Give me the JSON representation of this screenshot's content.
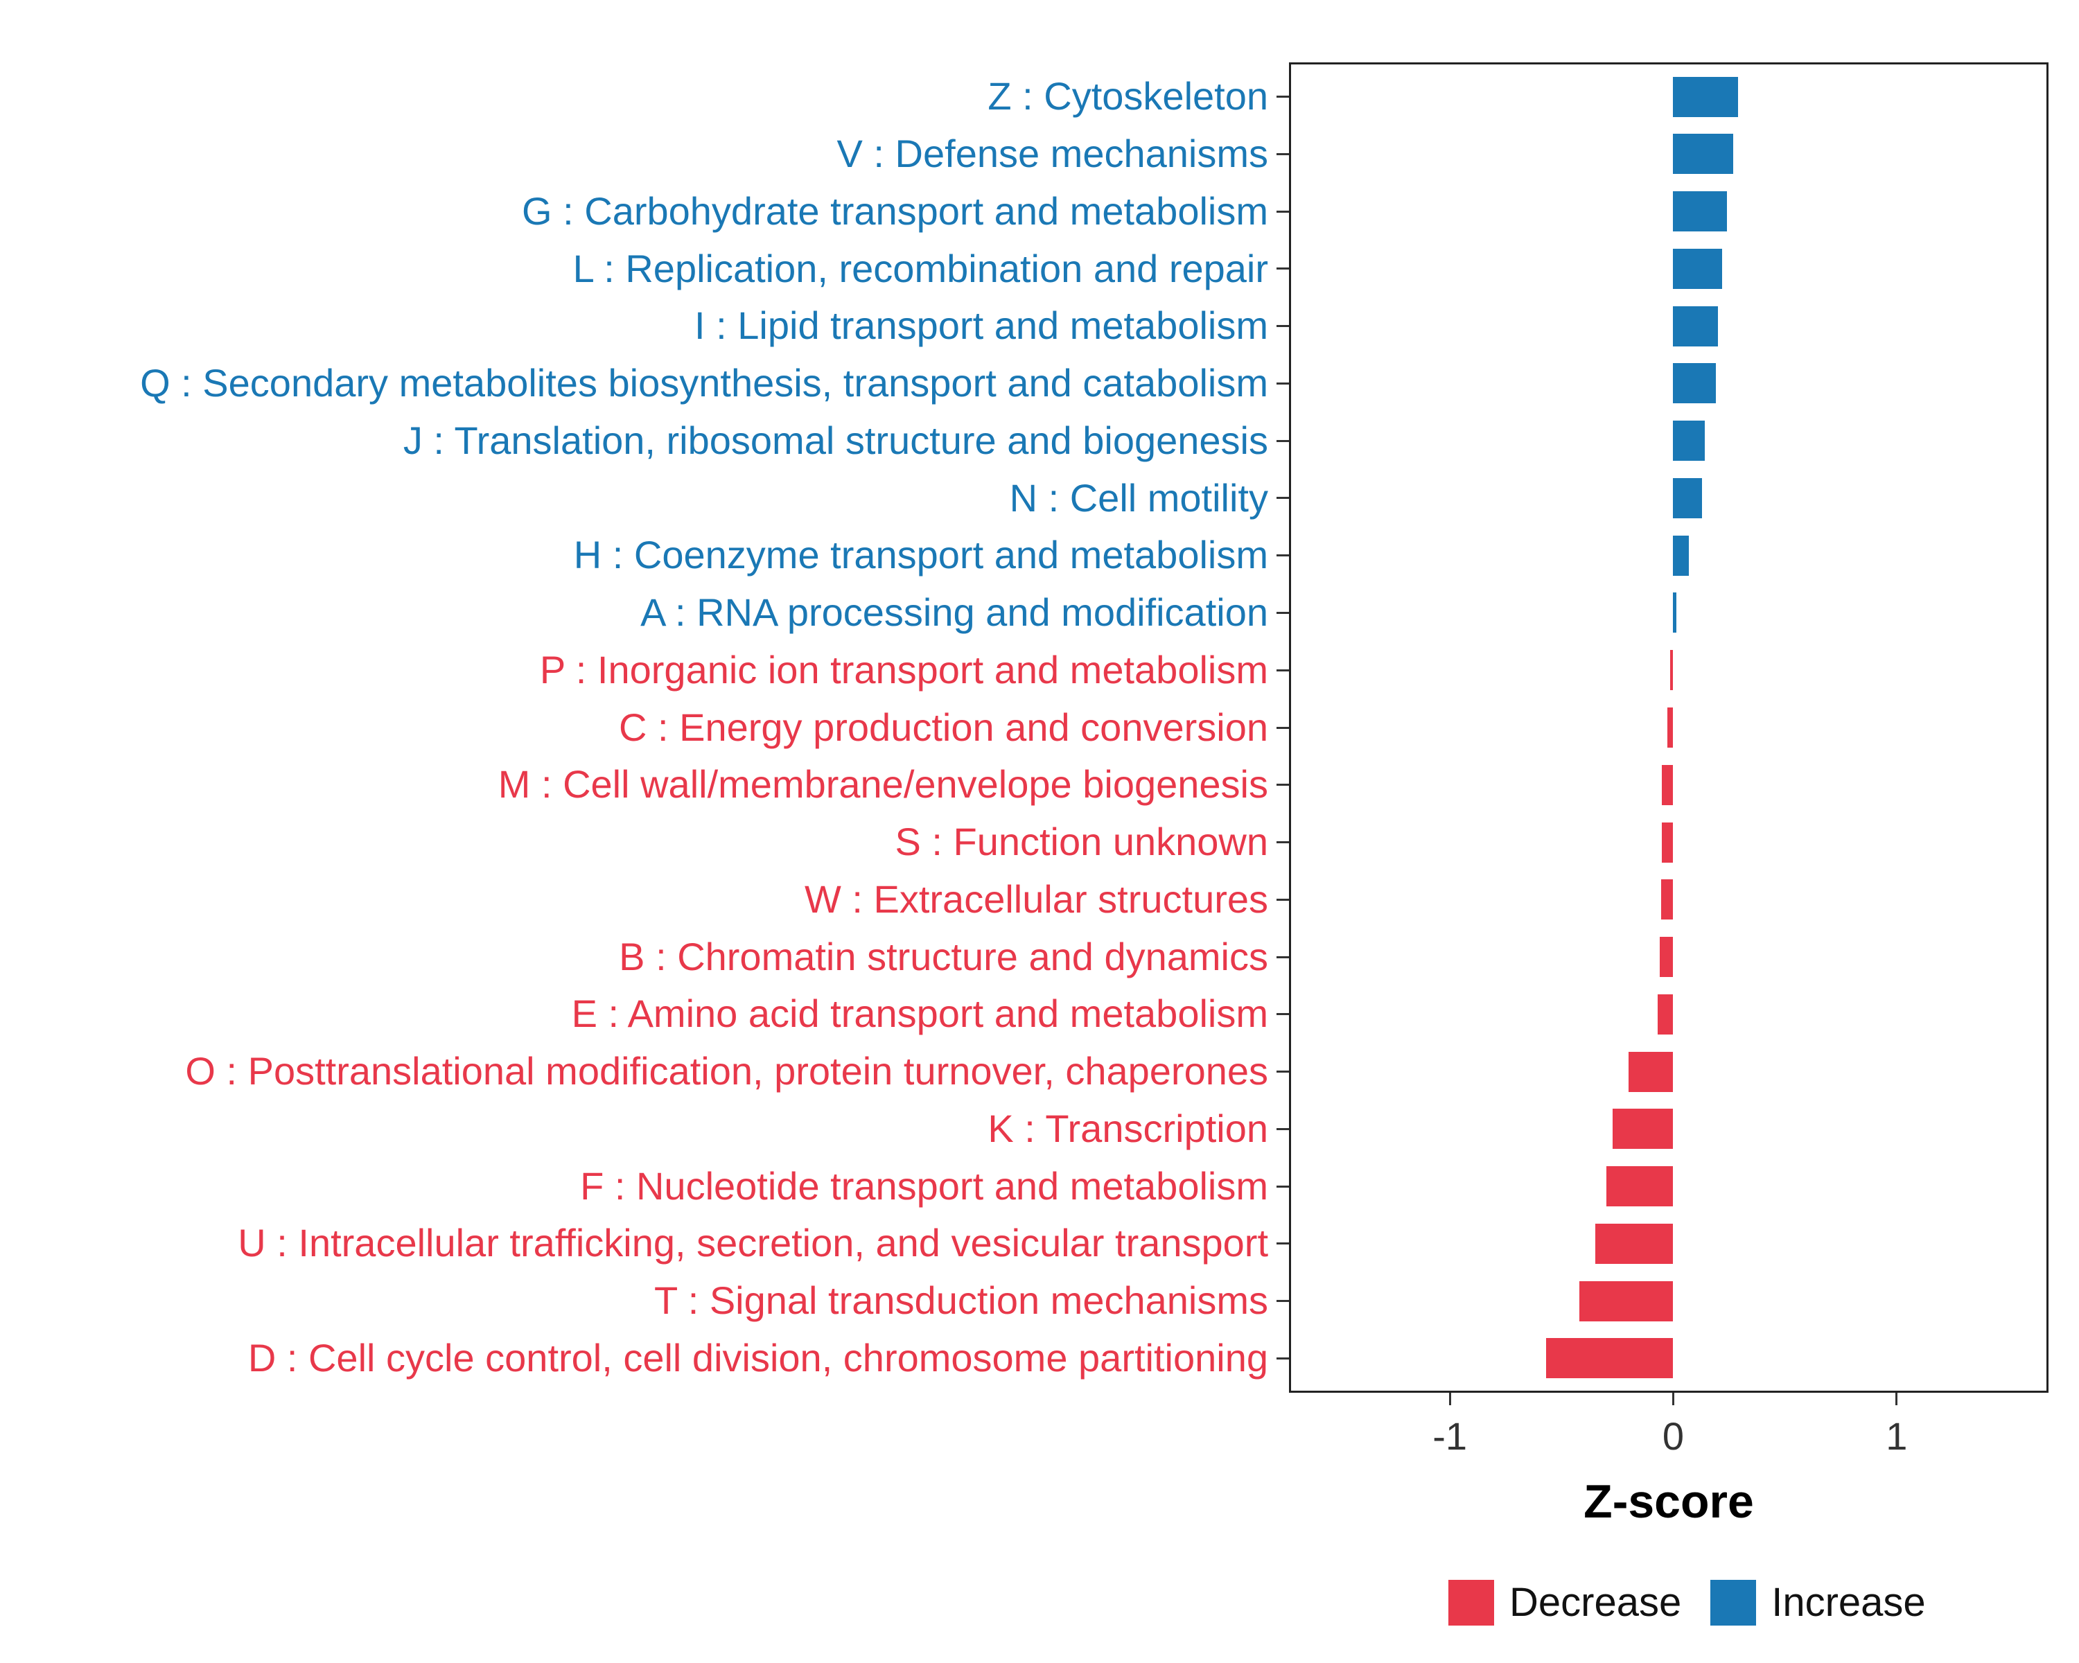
{
  "chart_data": {
    "type": "bar",
    "orientation": "horizontal",
    "title": "",
    "xlabel": "Z-score",
    "ylabel": "",
    "xlim": [
      -1.72,
      1.68
    ],
    "grid": false,
    "x_ticks": [
      {
        "value": -1,
        "label": "-1"
      },
      {
        "value": 0,
        "label": "0"
      },
      {
        "value": 1,
        "label": "1"
      }
    ],
    "legend_position": "bottom-right",
    "legend": [
      {
        "label": "Decrease",
        "color": "#E8384A"
      },
      {
        "label": "Increase",
        "color": "#1A78B5"
      }
    ],
    "categories": [
      {
        "label": "Z : Cytoskeleton",
        "value": 0.29,
        "group": "Increase"
      },
      {
        "label": "V : Defense mechanisms",
        "value": 0.27,
        "group": "Increase"
      },
      {
        "label": "G : Carbohydrate transport and metabolism",
        "value": 0.24,
        "group": "Increase"
      },
      {
        "label": "L : Replication, recombination and repair",
        "value": 0.22,
        "group": "Increase"
      },
      {
        "label": "I : Lipid transport and metabolism",
        "value": 0.2,
        "group": "Increase"
      },
      {
        "label": "Q : Secondary metabolites biosynthesis, transport and catabolism",
        "value": 0.19,
        "group": "Increase"
      },
      {
        "label": "J : Translation, ribosomal structure and biogenesis",
        "value": 0.14,
        "group": "Increase"
      },
      {
        "label": "N : Cell motility",
        "value": 0.13,
        "group": "Increase"
      },
      {
        "label": "H : Coenzyme transport and metabolism",
        "value": 0.07,
        "group": "Increase"
      },
      {
        "label": "A : RNA processing and modification",
        "value": 0.015,
        "group": "Increase"
      },
      {
        "label": "P : Inorganic ion transport and metabolism",
        "value": -0.015,
        "group": "Decrease"
      },
      {
        "label": "C : Energy production and conversion",
        "value": -0.025,
        "group": "Decrease"
      },
      {
        "label": "M : Cell wall/membrane/envelope biogenesis",
        "value": -0.05,
        "group": "Decrease"
      },
      {
        "label": "S : Function unknown",
        "value": -0.05,
        "group": "Decrease"
      },
      {
        "label": "W : Extracellular structures",
        "value": -0.055,
        "group": "Decrease"
      },
      {
        "label": "B : Chromatin structure and dynamics",
        "value": -0.06,
        "group": "Decrease"
      },
      {
        "label": "E : Amino acid transport and metabolism",
        "value": -0.07,
        "group": "Decrease"
      },
      {
        "label": "O : Posttranslational modification, protein turnover, chaperones",
        "value": -0.2,
        "group": "Decrease"
      },
      {
        "label": "K : Transcription",
        "value": -0.27,
        "group": "Decrease"
      },
      {
        "label": "F : Nucleotide transport and metabolism",
        "value": -0.3,
        "group": "Decrease"
      },
      {
        "label": "U : Intracellular trafficking, secretion, and vesicular transport",
        "value": -0.35,
        "group": "Decrease"
      },
      {
        "label": "T : Signal transduction mechanisms",
        "value": -0.42,
        "group": "Decrease"
      },
      {
        "label": "D : Cell cycle control, cell division, chromosome partitioning",
        "value": -0.57,
        "group": "Decrease"
      }
    ]
  },
  "colors": {
    "increase": "#1A78B5",
    "decrease": "#E8384A",
    "panel_border": "#222222",
    "axis_text": "#333333",
    "axis_title": "#000000",
    "background": "#FFFFFF"
  }
}
